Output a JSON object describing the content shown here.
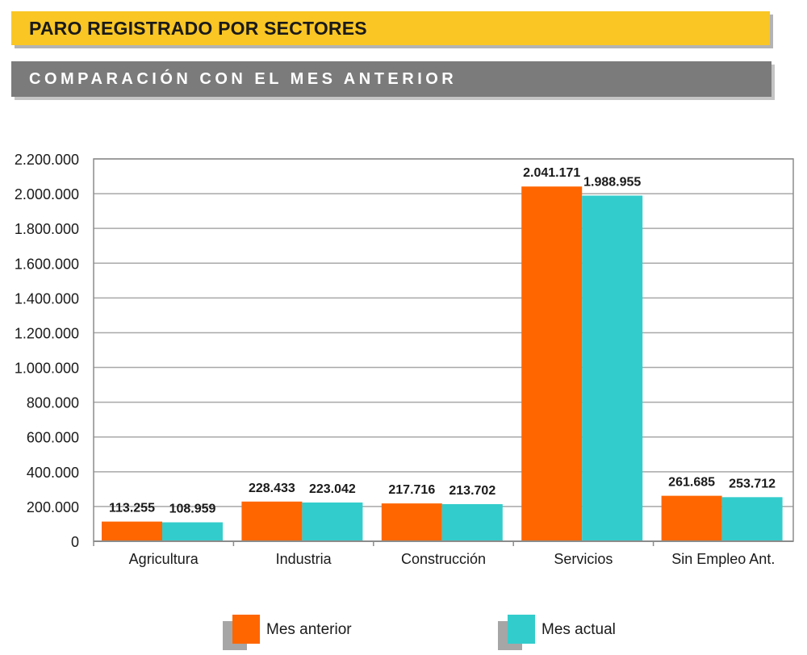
{
  "header": {
    "title": "PARO REGISTRADO POR SECTORES",
    "subtitle": "COMPARACIÓN CON EL MES ANTERIOR"
  },
  "chart_data": {
    "type": "bar",
    "categories": [
      "Agricultura",
      "Industria",
      "Construcción",
      "Servicios",
      "Sin Empleo Ant."
    ],
    "series": [
      {
        "name": "Mes anterior",
        "color": "#ff6600",
        "values": [
          113255,
          228433,
          217716,
          2041171,
          261685
        ],
        "labels": [
          "113.255",
          "228.433",
          "217.716",
          "2.041.171",
          "261.685"
        ]
      },
      {
        "name": "Mes actual",
        "color": "#33cccc",
        "values": [
          108959,
          223042,
          213702,
          1988955,
          253712
        ],
        "labels": [
          "108.959",
          "223.042",
          "213.702",
          "1.988.955",
          "253.712"
        ]
      }
    ],
    "ylim": [
      0,
      2200000
    ],
    "yticks": [
      0,
      200000,
      400000,
      600000,
      800000,
      1000000,
      1200000,
      1400000,
      1600000,
      1800000,
      2000000,
      2200000
    ],
    "ytick_labels": [
      "0",
      "200.000",
      "400.000",
      "600.000",
      "800.000",
      "1.000.000",
      "1.200.000",
      "1.400.000",
      "1.600.000",
      "1.800.000",
      "2.000.000",
      "2.200.000"
    ],
    "grid": true,
    "legend": "bottom"
  }
}
